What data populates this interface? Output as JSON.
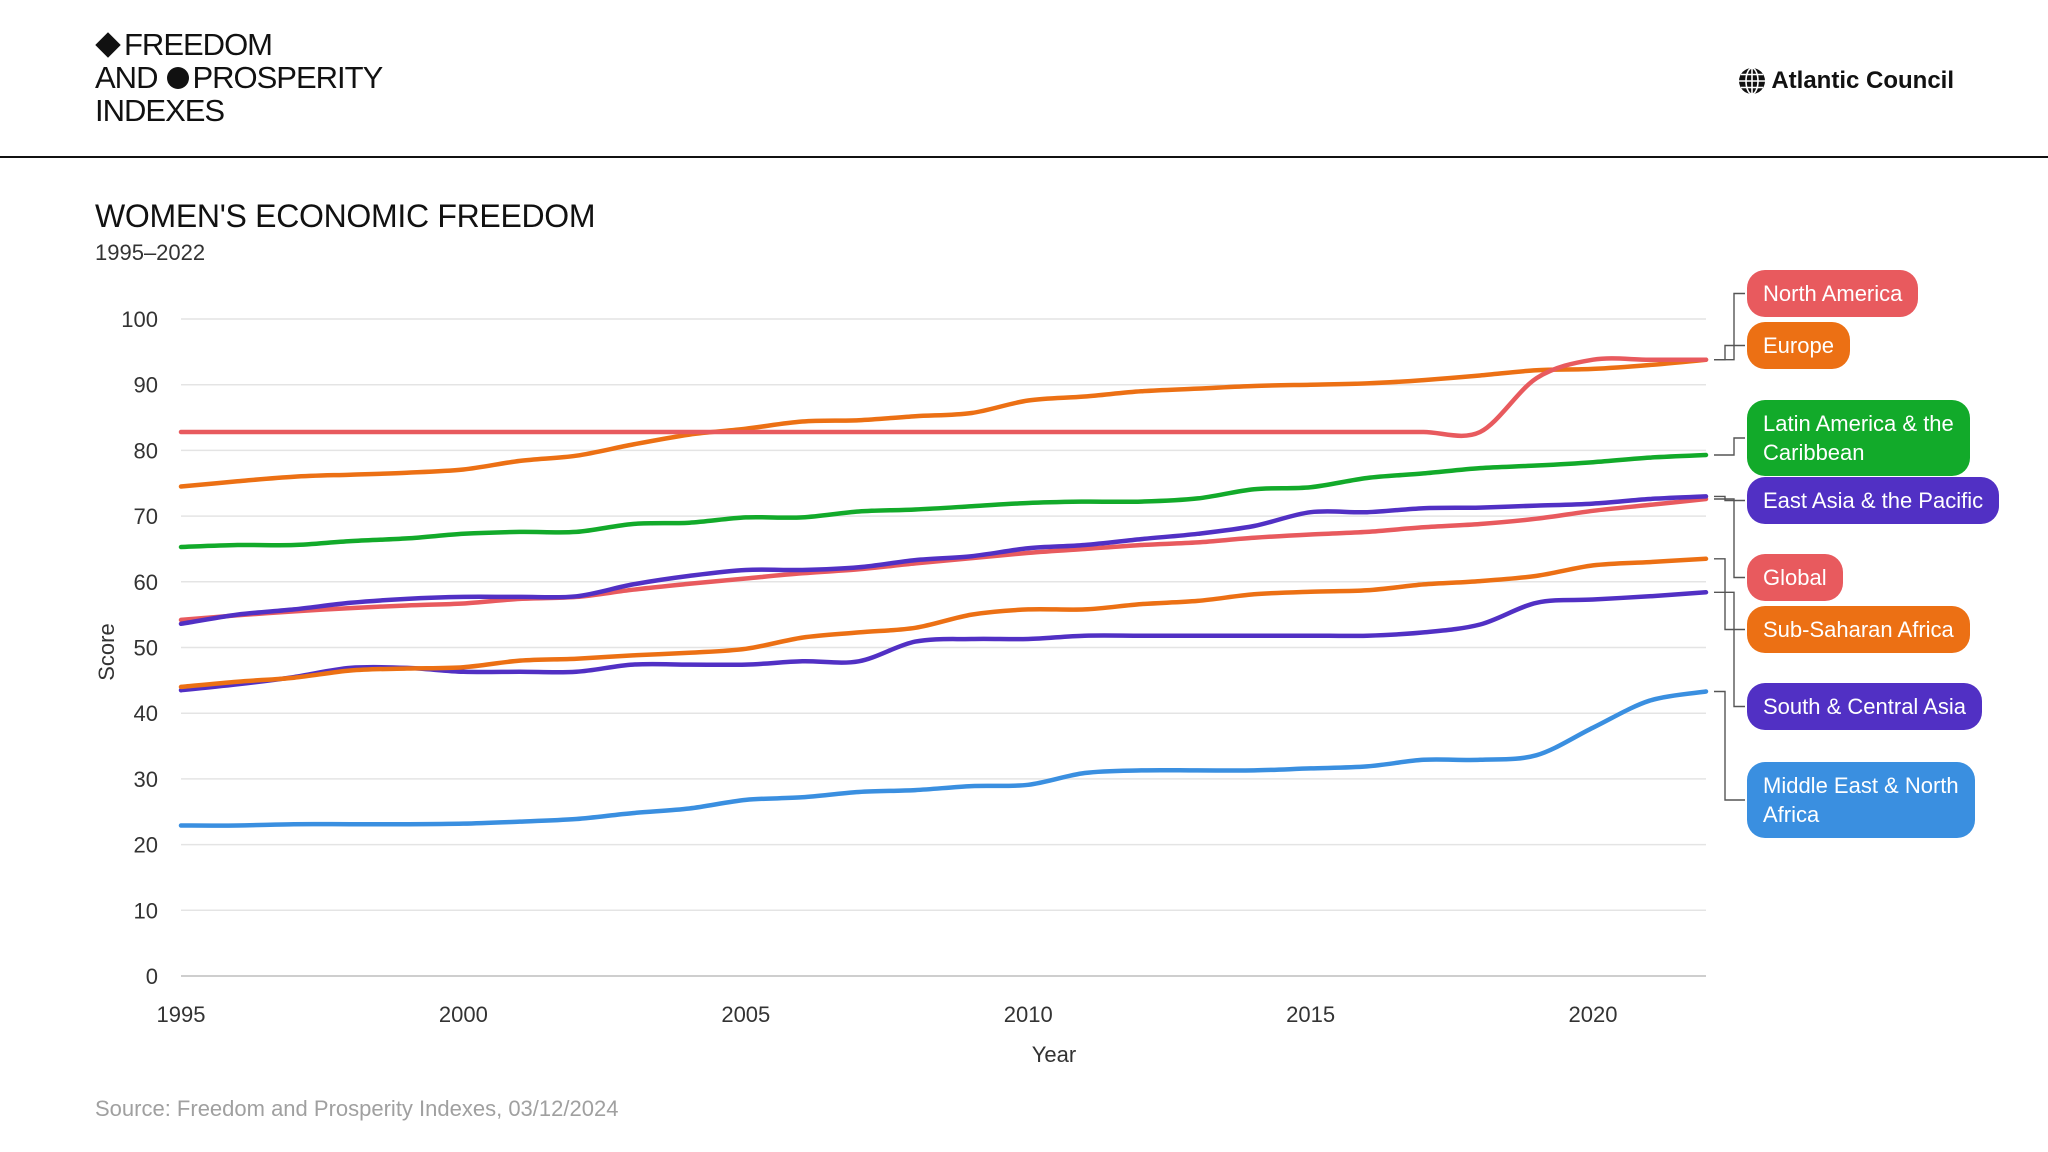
{
  "header": {
    "brand_line1": "FREEDOM",
    "brand_line2_a": "AND",
    "brand_line2_b": "PROSPERITY",
    "brand_line3": "INDEXES",
    "partner": "Atlantic Council"
  },
  "source": "Source: Freedom and Prosperity Indexes, 03/12/2024",
  "chart_data": {
    "type": "line",
    "title": "WOMEN'S ECONOMIC FREEDOM",
    "subtitle": "1995–2022",
    "xlabel": "Year",
    "ylabel": "Score",
    "xlim": [
      1995,
      2022
    ],
    "ylim": [
      0,
      100
    ],
    "xticks": [
      1995,
      2000,
      2005,
      2010,
      2015,
      2020
    ],
    "yticks": [
      0,
      10,
      20,
      30,
      40,
      50,
      60,
      70,
      80,
      90,
      100
    ],
    "grid": true,
    "legend": "right, labels attached to line ends",
    "x": [
      1995,
      1996,
      1997,
      1998,
      1999,
      2000,
      2001,
      2002,
      2003,
      2004,
      2005,
      2006,
      2007,
      2008,
      2009,
      2010,
      2011,
      2012,
      2013,
      2014,
      2015,
      2016,
      2017,
      2018,
      2019,
      2020,
      2021,
      2022
    ],
    "series": [
      {
        "name": "North America",
        "color": "#e85a5e",
        "values": [
          82.8,
          82.8,
          82.8,
          82.8,
          82.8,
          82.8,
          82.8,
          82.8,
          82.8,
          82.8,
          82.8,
          82.8,
          82.8,
          82.8,
          82.8,
          82.8,
          82.8,
          82.8,
          82.8,
          82.8,
          82.8,
          82.8,
          82.8,
          82.8,
          91.0,
          93.8,
          93.8,
          93.8
        ]
      },
      {
        "name": "Europe",
        "color": "#ec7014",
        "values": [
          74.5,
          75.3,
          76.0,
          76.3,
          76.6,
          77.1,
          78.4,
          79.2,
          80.9,
          82.4,
          83.3,
          84.4,
          84.6,
          85.2,
          85.7,
          87.6,
          88.2,
          89.0,
          89.4,
          89.8,
          90.0,
          90.2,
          90.7,
          91.4,
          92.2,
          92.4,
          93.0,
          93.8
        ]
      },
      {
        "name": "Latin America & the Caribbean",
        "color": "#12aa2a",
        "values": [
          65.3,
          65.6,
          65.6,
          66.2,
          66.6,
          67.3,
          67.6,
          67.6,
          68.8,
          69.0,
          69.8,
          69.8,
          70.7,
          71.0,
          71.5,
          72.0,
          72.2,
          72.2,
          72.7,
          74.1,
          74.4,
          75.8,
          76.5,
          77.3,
          77.7,
          78.2,
          78.9,
          79.3
        ]
      },
      {
        "name": "East Asia & the Pacific",
        "color": "#5130c4",
        "values": [
          53.6,
          55.0,
          55.8,
          56.8,
          57.4,
          57.7,
          57.7,
          57.8,
          59.6,
          60.9,
          61.8,
          61.8,
          62.2,
          63.3,
          63.9,
          65.1,
          65.6,
          66.5,
          67.3,
          68.5,
          70.6,
          70.6,
          71.2,
          71.3,
          71.6,
          71.9,
          72.6,
          73.0
        ]
      },
      {
        "name": "Global",
        "color": "#e85a5e",
        "values": [
          54.2,
          54.9,
          55.5,
          56.0,
          56.4,
          56.7,
          57.4,
          57.7,
          58.8,
          59.7,
          60.5,
          61.3,
          61.9,
          62.8,
          63.6,
          64.4,
          65.0,
          65.6,
          66.0,
          66.7,
          67.2,
          67.6,
          68.3,
          68.8,
          69.6,
          70.8,
          71.7,
          72.6
        ]
      },
      {
        "name": "Sub-Saharan Africa",
        "color": "#ec7014",
        "values": [
          44.0,
          44.8,
          45.4,
          46.5,
          46.8,
          47.0,
          48.0,
          48.3,
          48.8,
          49.2,
          49.8,
          51.5,
          52.3,
          53.0,
          55.0,
          55.8,
          55.8,
          56.6,
          57.1,
          58.1,
          58.5,
          58.7,
          59.6,
          60.1,
          60.9,
          62.5,
          63.0,
          63.5
        ]
      },
      {
        "name": "South & Central Asia",
        "color": "#5130c4",
        "values": [
          43.5,
          44.4,
          45.5,
          46.9,
          46.9,
          46.3,
          46.3,
          46.3,
          47.4,
          47.4,
          47.4,
          47.9,
          47.9,
          50.9,
          51.3,
          51.3,
          51.8,
          51.8,
          51.8,
          51.8,
          51.8,
          51.8,
          52.3,
          53.5,
          56.8,
          57.3,
          57.8,
          58.4
        ]
      },
      {
        "name": "Middle East & North Africa",
        "color": "#3a8fe0",
        "values": [
          22.9,
          22.9,
          23.1,
          23.1,
          23.1,
          23.2,
          23.5,
          23.9,
          24.8,
          25.5,
          26.8,
          27.2,
          28.0,
          28.3,
          28.9,
          29.1,
          30.9,
          31.3,
          31.3,
          31.3,
          31.6,
          31.9,
          32.9,
          32.9,
          33.6,
          37.8,
          41.9,
          43.3
        ]
      }
    ],
    "labels": [
      {
        "line1": "North America",
        "line2": "",
        "color": "#e85a5e",
        "series": 0
      },
      {
        "line1": "Europe",
        "line2": "",
        "color": "#ec7014",
        "series": 1
      },
      {
        "line1": "Latin America & the",
        "line2": "Caribbean",
        "color": "#12aa2a",
        "series": 2
      },
      {
        "line1": "East Asia & the Pacific",
        "line2": "",
        "color": "#5130c4",
        "series": 3
      },
      {
        "line1": "Global",
        "line2": "",
        "color": "#e85a5e",
        "series": 4
      },
      {
        "line1": "Sub-Saharan Africa",
        "line2": "",
        "color": "#ec7014",
        "series": 5
      },
      {
        "line1": "South & Central Asia",
        "line2": "",
        "color": "#5130c4",
        "series": 6
      },
      {
        "line1": "Middle East & North",
        "line2": "Africa",
        "color": "#3a8fe0",
        "series": 7
      }
    ]
  }
}
